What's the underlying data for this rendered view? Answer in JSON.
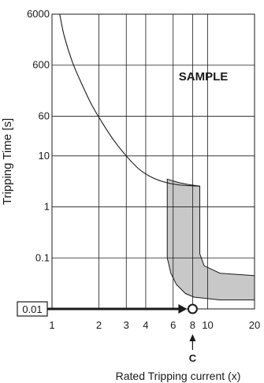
{
  "chart_data": {
    "type": "line",
    "title": "",
    "watermark": "SAMPLE",
    "xlabel": "Rated Tripping current (x)",
    "ylabel": "Tripping Time [s]",
    "x_scale": "log",
    "y_scale": "log",
    "xlim": [
      1,
      20
    ],
    "ylim": [
      0.01,
      6000
    ],
    "x_ticks": [
      1,
      2,
      3,
      4,
      6,
      8,
      10,
      20
    ],
    "x_tick_labels": [
      "1",
      "2",
      "3",
      "4",
      "6",
      "8",
      "10",
      "20"
    ],
    "y_ticks": [
      0.01,
      0.1,
      1,
      10,
      60,
      600,
      6000
    ],
    "y_tick_labels": [
      "0.01",
      "0.1",
      "1",
      "10",
      "60",
      "600",
      "6000"
    ],
    "grid": true,
    "series": [
      {
        "kind": "curve",
        "points": [
          [
            1.12,
            6000
          ],
          [
            1.2,
            2200
          ],
          [
            1.35,
            700
          ],
          [
            1.55,
            260
          ],
          [
            1.8,
            100
          ],
          [
            2.1,
            45
          ],
          [
            2.5,
            20
          ],
          [
            3.0,
            10
          ],
          [
            3.6,
            5.6
          ],
          [
            4.3,
            3.9
          ],
          [
            5.2,
            3.1
          ],
          [
            6.5,
            2.7
          ],
          [
            8.9,
            2.55
          ]
        ]
      },
      {
        "kind": "band",
        "upper": [
          [
            5.5,
            3.5
          ],
          [
            6.5,
            3.0
          ],
          [
            7.5,
            2.75
          ],
          [
            8.9,
            2.55
          ],
          [
            8.9,
            0.12
          ],
          [
            9.5,
            0.07
          ],
          [
            12,
            0.05
          ],
          [
            20,
            0.045
          ]
        ],
        "lower": [
          [
            5.5,
            0.1
          ],
          [
            5.8,
            0.05
          ],
          [
            6.3,
            0.03
          ],
          [
            7.2,
            0.02
          ],
          [
            8.2,
            0.017
          ],
          [
            12,
            0.015
          ],
          [
            20,
            0.015
          ]
        ],
        "fill": "#c8c8c8"
      }
    ],
    "annotations": [
      {
        "type": "arrow",
        "from": [
          1,
          0.01
        ],
        "to": [
          8,
          0.01
        ],
        "label": "0.01",
        "label_boxed": true
      },
      {
        "type": "marker",
        "at": [
          8,
          0.01
        ],
        "shape": "open-circle"
      },
      {
        "type": "arrow-up",
        "x": 8,
        "label": "C"
      }
    ],
    "colors": {
      "line": "#1a1a1a",
      "band": "#c8c8c8",
      "grid": "#1a1a1a"
    }
  }
}
